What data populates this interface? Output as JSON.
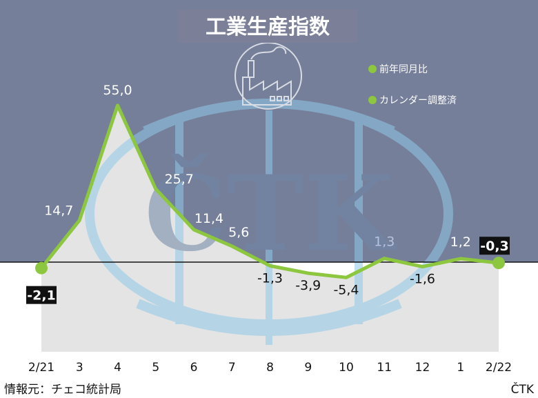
{
  "chart_data": {
    "type": "line",
    "title": "工業生産指数",
    "categories": [
      "2/21",
      "3",
      "4",
      "5",
      "6",
      "7",
      "8",
      "9",
      "10",
      "11",
      "12",
      "1",
      "2/22"
    ],
    "series": [
      {
        "name": "前年同月比",
        "values": [
          -2.1,
          14.7,
          55.0,
          25.7,
          11.4,
          5.6,
          -1.3,
          -3.9,
          -5.4,
          1.3,
          -1.6,
          1.2,
          -0.3
        ]
      }
    ],
    "data_labels": [
      "-2,1",
      "14,7",
      "55,0",
      "25,7",
      "11,4",
      "5,6",
      "-1,3",
      "-3,9",
      "-5,4",
      "1,3",
      "-1,6",
      "1,2",
      "-0,3"
    ],
    "legend": [
      "前年同月比",
      "カレンダー調整済"
    ],
    "legend_position": "top-right",
    "highlighted_labels": [
      "-2,1",
      "-0,3"
    ],
    "colors": {
      "line": "#8dc63f",
      "top_background": "#767f9a",
      "bottom_background": "#e6e6e6",
      "watermark": "#8fc9e8"
    },
    "grid": false
  },
  "watermark": {
    "text": "ČTK"
  },
  "footer": {
    "source": "情報元：チェコ統計局",
    "credit": "ČTK"
  }
}
